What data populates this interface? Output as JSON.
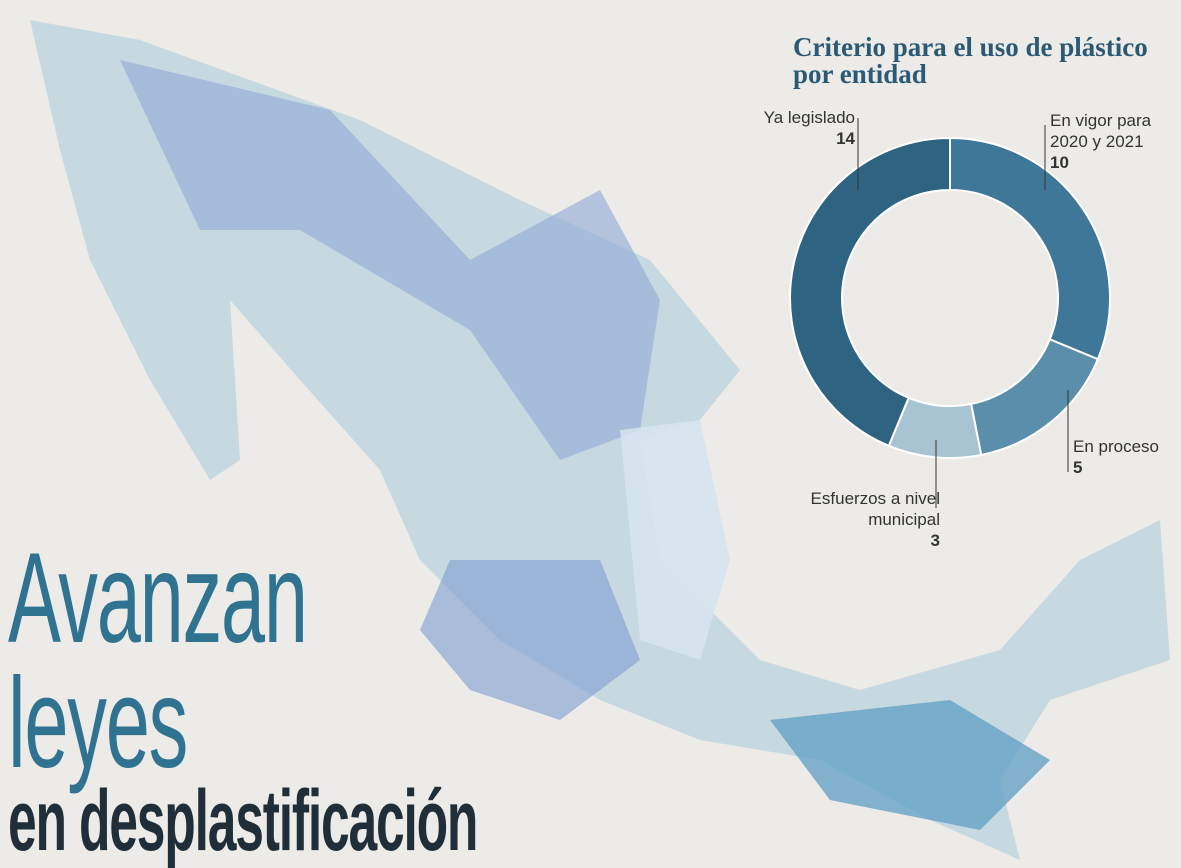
{
  "headline": {
    "line1": "Avanzan",
    "line2": "leyes",
    "line3": "en desplastificación"
  },
  "chart_data": {
    "type": "donut",
    "title": "Criterio para el uso de plástico por entidad",
    "categories": [
      "En vigor para 2020 y 2021",
      "En proceso",
      "Esfuerzos a nivel municipal",
      "Ya legislado"
    ],
    "values": [
      10,
      5,
      3,
      14
    ],
    "colors": [
      "#3f7798",
      "#5a8eaa",
      "#a8c4d2",
      "#2e6482"
    ]
  }
}
